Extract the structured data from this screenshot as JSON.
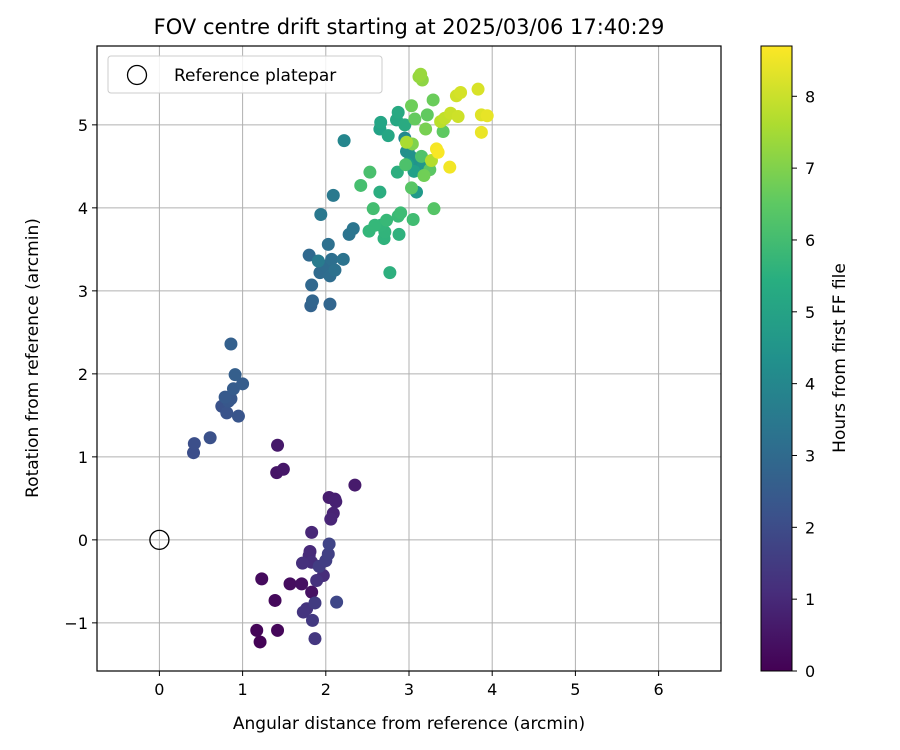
{
  "chart_data": {
    "type": "scatter",
    "title": "FOV centre drift starting at 2025/03/06 17:40:29",
    "xlabel": "Angular distance from reference (arcmin)",
    "ylabel": "Rotation from reference (arcmin)",
    "xlim": [
      -0.75,
      6.75
    ],
    "ylim": [
      -1.58,
      5.95
    ],
    "x_ticks": [
      0,
      1,
      2,
      3,
      4,
      5,
      6
    ],
    "y_ticks": [
      -1,
      0,
      1,
      2,
      3,
      4,
      5
    ],
    "grid": true,
    "legend": {
      "placement": "top-left",
      "entries": [
        {
          "label": "Reference platepar",
          "marker": "open-circle"
        }
      ]
    },
    "reference_point": {
      "x": 0,
      "y": 0
    },
    "colorbar": {
      "label": "Hours from first FF file",
      "colormap": "viridis",
      "range": [
        0,
        8.7
      ],
      "ticks": [
        0,
        1,
        2,
        3,
        4,
        5,
        6,
        7,
        8
      ]
    },
    "points": [
      {
        "x": 1.21,
        "y": -1.23,
        "t": 0.05
      },
      {
        "x": 1.17,
        "y": -1.09,
        "t": 0.1
      },
      {
        "x": 1.42,
        "y": -1.09,
        "t": 0.15
      },
      {
        "x": 1.39,
        "y": -0.73,
        "t": 0.2
      },
      {
        "x": 1.23,
        "y": -0.47,
        "t": 0.25
      },
      {
        "x": 1.57,
        "y": -0.53,
        "t": 0.3
      },
      {
        "x": 1.71,
        "y": -0.53,
        "t": 0.35
      },
      {
        "x": 1.83,
        "y": -0.63,
        "t": 0.4
      },
      {
        "x": 1.41,
        "y": 0.81,
        "t": 0.5
      },
      {
        "x": 1.49,
        "y": 0.85,
        "t": 0.55
      },
      {
        "x": 1.42,
        "y": 1.14,
        "t": 0.6
      },
      {
        "x": 2.35,
        "y": 0.66,
        "t": 0.65
      },
      {
        "x": 2.04,
        "y": 0.51,
        "t": 0.7
      },
      {
        "x": 2.11,
        "y": 0.49,
        "t": 0.75
      },
      {
        "x": 2.12,
        "y": 0.46,
        "t": 0.8
      },
      {
        "x": 2.09,
        "y": 0.32,
        "t": 0.85
      },
      {
        "x": 2.06,
        "y": 0.25,
        "t": 0.9
      },
      {
        "x": 1.83,
        "y": 0.09,
        "t": 0.95
      },
      {
        "x": 1.81,
        "y": -0.14,
        "t": 1.0
      },
      {
        "x": 1.8,
        "y": -0.19,
        "t": 1.05
      },
      {
        "x": 1.97,
        "y": -0.43,
        "t": 1.1
      },
      {
        "x": 1.83,
        "y": -0.27,
        "t": 1.15
      },
      {
        "x": 1.72,
        "y": -0.28,
        "t": 1.2
      },
      {
        "x": 1.89,
        "y": -0.49,
        "t": 1.25
      },
      {
        "x": 1.77,
        "y": -0.83,
        "t": 1.3
      },
      {
        "x": 1.73,
        "y": -0.87,
        "t": 1.35
      },
      {
        "x": 1.87,
        "y": -1.19,
        "t": 1.4
      },
      {
        "x": 1.84,
        "y": -0.97,
        "t": 1.45
      },
      {
        "x": 1.87,
        "y": -0.76,
        "t": 1.5
      },
      {
        "x": 1.92,
        "y": -0.32,
        "t": 1.55
      },
      {
        "x": 2.0,
        "y": -0.25,
        "t": 1.6
      },
      {
        "x": 2.03,
        "y": -0.17,
        "t": 1.65
      },
      {
        "x": 2.04,
        "y": -0.05,
        "t": 1.75
      },
      {
        "x": 2.13,
        "y": -0.75,
        "t": 1.85
      },
      {
        "x": 0.41,
        "y": 1.05,
        "t": 2.05
      },
      {
        "x": 0.42,
        "y": 1.16,
        "t": 2.1
      },
      {
        "x": 0.61,
        "y": 1.23,
        "t": 2.15
      },
      {
        "x": 0.75,
        "y": 1.61,
        "t": 2.2
      },
      {
        "x": 0.81,
        "y": 1.53,
        "t": 2.25
      },
      {
        "x": 0.95,
        "y": 1.49,
        "t": 2.3
      },
      {
        "x": 0.83,
        "y": 1.67,
        "t": 2.35
      },
      {
        "x": 0.86,
        "y": 1.7,
        "t": 2.4
      },
      {
        "x": 0.79,
        "y": 1.72,
        "t": 2.45
      },
      {
        "x": 0.89,
        "y": 1.82,
        "t": 2.5
      },
      {
        "x": 1.0,
        "y": 1.88,
        "t": 2.55
      },
      {
        "x": 0.91,
        "y": 1.99,
        "t": 2.6
      },
      {
        "x": 0.86,
        "y": 2.36,
        "t": 2.65
      },
      {
        "x": 1.82,
        "y": 2.82,
        "t": 2.75
      },
      {
        "x": 1.84,
        "y": 2.88,
        "t": 2.8
      },
      {
        "x": 2.05,
        "y": 2.84,
        "t": 2.85
      },
      {
        "x": 1.83,
        "y": 3.07,
        "t": 2.9
      },
      {
        "x": 1.8,
        "y": 3.43,
        "t": 2.95
      },
      {
        "x": 1.93,
        "y": 3.22,
        "t": 3.0
      },
      {
        "x": 2.0,
        "y": 3.3,
        "t": 3.05
      },
      {
        "x": 2.05,
        "y": 3.18,
        "t": 3.1
      },
      {
        "x": 2.07,
        "y": 3.38,
        "t": 3.15
      },
      {
        "x": 2.03,
        "y": 3.56,
        "t": 3.2
      },
      {
        "x": 2.11,
        "y": 3.25,
        "t": 3.25
      },
      {
        "x": 2.21,
        "y": 3.38,
        "t": 3.3
      },
      {
        "x": 2.28,
        "y": 3.68,
        "t": 3.35
      },
      {
        "x": 2.33,
        "y": 3.75,
        "t": 3.4
      },
      {
        "x": 1.94,
        "y": 3.92,
        "t": 3.5
      },
      {
        "x": 2.09,
        "y": 4.15,
        "t": 3.55
      },
      {
        "x": 1.91,
        "y": 3.36,
        "t": 3.6
      },
      {
        "x": 2.22,
        "y": 4.81,
        "t": 4.0
      },
      {
        "x": 2.95,
        "y": 4.84,
        "t": 4.1
      },
      {
        "x": 3.0,
        "y": 4.73,
        "t": 4.2
      },
      {
        "x": 2.97,
        "y": 4.68,
        "t": 4.3
      },
      {
        "x": 3.02,
        "y": 4.62,
        "t": 4.4
      },
      {
        "x": 3.12,
        "y": 4.54,
        "t": 4.5
      },
      {
        "x": 3.17,
        "y": 4.5,
        "t": 4.6
      },
      {
        "x": 3.09,
        "y": 4.19,
        "t": 4.7
      },
      {
        "x": 2.98,
        "y": 4.53,
        "t": 4.8
      },
      {
        "x": 3.06,
        "y": 4.44,
        "t": 4.9
      },
      {
        "x": 2.65,
        "y": 4.95,
        "t": 5.0
      },
      {
        "x": 2.66,
        "y": 5.03,
        "t": 5.1
      },
      {
        "x": 2.75,
        "y": 4.87,
        "t": 5.15
      },
      {
        "x": 2.85,
        "y": 5.06,
        "t": 5.2
      },
      {
        "x": 2.87,
        "y": 5.15,
        "t": 5.25
      },
      {
        "x": 2.95,
        "y": 5.0,
        "t": 5.3
      },
      {
        "x": 2.65,
        "y": 4.19,
        "t": 5.4
      },
      {
        "x": 2.86,
        "y": 4.43,
        "t": 5.45
      },
      {
        "x": 2.77,
        "y": 3.22,
        "t": 5.5
      },
      {
        "x": 2.88,
        "y": 3.68,
        "t": 5.55
      },
      {
        "x": 2.7,
        "y": 3.63,
        "t": 5.6
      },
      {
        "x": 2.71,
        "y": 3.71,
        "t": 5.65
      },
      {
        "x": 2.66,
        "y": 3.79,
        "t": 5.7
      },
      {
        "x": 2.52,
        "y": 3.72,
        "t": 5.75
      },
      {
        "x": 2.59,
        "y": 3.79,
        "t": 5.8
      },
      {
        "x": 2.73,
        "y": 3.85,
        "t": 5.85
      },
      {
        "x": 2.87,
        "y": 3.9,
        "t": 5.9
      },
      {
        "x": 2.9,
        "y": 3.94,
        "t": 5.95
      },
      {
        "x": 3.05,
        "y": 3.86,
        "t": 6.0
      },
      {
        "x": 2.57,
        "y": 3.99,
        "t": 6.05
      },
      {
        "x": 2.42,
        "y": 4.27,
        "t": 6.1
      },
      {
        "x": 2.53,
        "y": 4.43,
        "t": 6.15
      },
      {
        "x": 2.96,
        "y": 4.52,
        "t": 6.2
      },
      {
        "x": 3.15,
        "y": 4.62,
        "t": 6.25
      },
      {
        "x": 3.3,
        "y": 3.99,
        "t": 6.35
      },
      {
        "x": 3.03,
        "y": 4.24,
        "t": 6.4
      },
      {
        "x": 3.25,
        "y": 4.46,
        "t": 6.45
      },
      {
        "x": 3.41,
        "y": 4.92,
        "t": 6.5
      },
      {
        "x": 3.22,
        "y": 5.12,
        "t": 6.55
      },
      {
        "x": 3.07,
        "y": 5.07,
        "t": 6.6
      },
      {
        "x": 3.29,
        "y": 5.3,
        "t": 6.7
      },
      {
        "x": 3.03,
        "y": 5.23,
        "t": 6.75
      },
      {
        "x": 3.18,
        "y": 4.39,
        "t": 6.8
      },
      {
        "x": 3.2,
        "y": 4.95,
        "t": 6.9
      },
      {
        "x": 3.04,
        "y": 4.77,
        "t": 7.0
      },
      {
        "x": 3.16,
        "y": 5.54,
        "t": 7.2
      },
      {
        "x": 3.12,
        "y": 5.58,
        "t": 7.3
      },
      {
        "x": 3.14,
        "y": 5.61,
        "t": 7.35
      },
      {
        "x": 2.97,
        "y": 4.79,
        "t": 7.6
      },
      {
        "x": 3.27,
        "y": 4.57,
        "t": 7.7
      },
      {
        "x": 3.38,
        "y": 5.04,
        "t": 7.8
      },
      {
        "x": 3.43,
        "y": 5.08,
        "t": 7.9
      },
      {
        "x": 3.5,
        "y": 5.14,
        "t": 8.0
      },
      {
        "x": 3.59,
        "y": 5.1,
        "t": 8.05
      },
      {
        "x": 3.57,
        "y": 5.35,
        "t": 8.1
      },
      {
        "x": 3.62,
        "y": 5.39,
        "t": 8.15
      },
      {
        "x": 3.83,
        "y": 5.43,
        "t": 8.2
      },
      {
        "x": 3.87,
        "y": 5.12,
        "t": 8.3
      },
      {
        "x": 3.94,
        "y": 5.11,
        "t": 8.4
      },
      {
        "x": 3.87,
        "y": 4.91,
        "t": 8.45
      },
      {
        "x": 3.49,
        "y": 4.49,
        "t": 8.55
      },
      {
        "x": 3.33,
        "y": 4.71,
        "t": 8.6
      },
      {
        "x": 3.35,
        "y": 4.67,
        "t": 8.65
      }
    ]
  }
}
